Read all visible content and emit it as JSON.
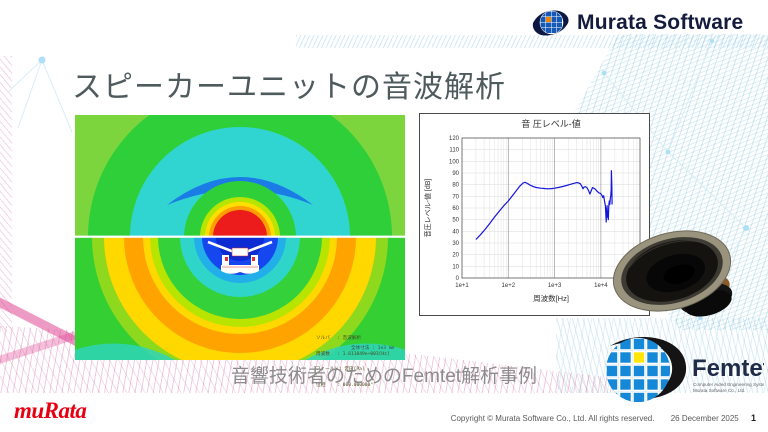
{
  "header": {
    "brand": "Murata Software"
  },
  "slide": {
    "title": "スピーカーユニットの音波解析",
    "subtitle": "音響技術者のためのFemtet解析事例",
    "footer": {
      "copyright": "Copyright © Murata Software Co., Ltd. All rights reserved.",
      "date": "26 December 2025",
      "page_number": "1"
    }
  },
  "logos": {
    "murata_text": "muRata",
    "femtet": {
      "name": "Femtet",
      "tagline_line1": "Computer Aided Engineering System",
      "tagline_line2": "Murata Software Co., Ltd."
    }
  },
  "colors": {
    "accent_red": "#e60012",
    "brand_navy": "#141b3c",
    "femtet_blue": "#1387d8",
    "femtet_yellow": "#ffe60a",
    "chart_line": "#1515dd"
  },
  "contour_plot": {
    "description": "acoustic pressure contour field of speaker unit",
    "legend_lines": [
      "ソルバ　 : 音波解析",
      "周波数　 : 1.611049e+003[Hz]",
      "フィールド: 音圧[Pa]",
      "位相　　 : 000.000000°",
      "スケール : Linear"
    ],
    "dimension_note": "全体寸法 : 1e3 mm",
    "palette": [
      "#ec1c1c",
      "#ff9e00",
      "#ffdf00",
      "#b8e500",
      "#2fcf3a",
      "#30d5d2",
      "#1b7ce6",
      "#1646ee"
    ]
  },
  "chart_data": {
    "type": "line",
    "title": "音 圧レベル-値",
    "xlabel": "周波数[Hz]",
    "ylabel": "音圧レベル-値 [dB]",
    "x_scale": "log",
    "xlim": [
      10,
      70000
    ],
    "ylim": [
      0,
      120
    ],
    "y_tick_step": 10,
    "x_tick_values": [
      10,
      100,
      1000,
      10000
    ],
    "x_tick_labels": [
      "1e+1",
      "1e+2",
      "1e+3",
      "1e+4"
    ],
    "grid": true,
    "legend_position": "none",
    "line_color": "#1515dd",
    "series": [
      {
        "name": "音圧レベル",
        "x": [
          20,
          25,
          32,
          40,
          50,
          63,
          80,
          100,
          125,
          150,
          180,
          210,
          230,
          260,
          300,
          350,
          400,
          500,
          600,
          700,
          850,
          1000,
          1200,
          1500,
          1800,
          2200,
          2700,
          3000,
          3300,
          3600,
          3900,
          4100,
          4300,
          4600,
          5000,
          5400,
          5800,
          6200,
          6600,
          7000,
          7600,
          8200,
          9000,
          9800,
          10500,
          11000,
          11500,
          12000,
          12500,
          12800,
          13000,
          13300,
          13600,
          13900,
          14200,
          14500,
          14800,
          15200,
          15600,
          16000,
          16400,
          16700,
          16900,
          17200,
          17500
        ],
        "y": [
          33,
          37,
          42,
          47,
          52,
          57,
          62,
          66,
          71,
          75,
          79,
          81.5,
          82,
          81,
          79.5,
          78.3,
          77.6,
          77,
          76.7,
          76.5,
          76.6,
          77,
          77.6,
          78.4,
          79.3,
          80.3,
          81.3,
          81.8,
          81.5,
          80.8,
          78.5,
          76.5,
          77.8,
          78.3,
          77.5,
          75,
          72,
          75,
          77.5,
          77,
          76,
          74.5,
          73,
          72.5,
          71,
          69,
          70.5,
          66,
          62,
          55,
          48,
          58,
          62,
          52,
          57,
          50,
          62,
          66,
          63,
          68,
          71,
          76,
          92,
          80,
          63
        ]
      }
    ]
  }
}
